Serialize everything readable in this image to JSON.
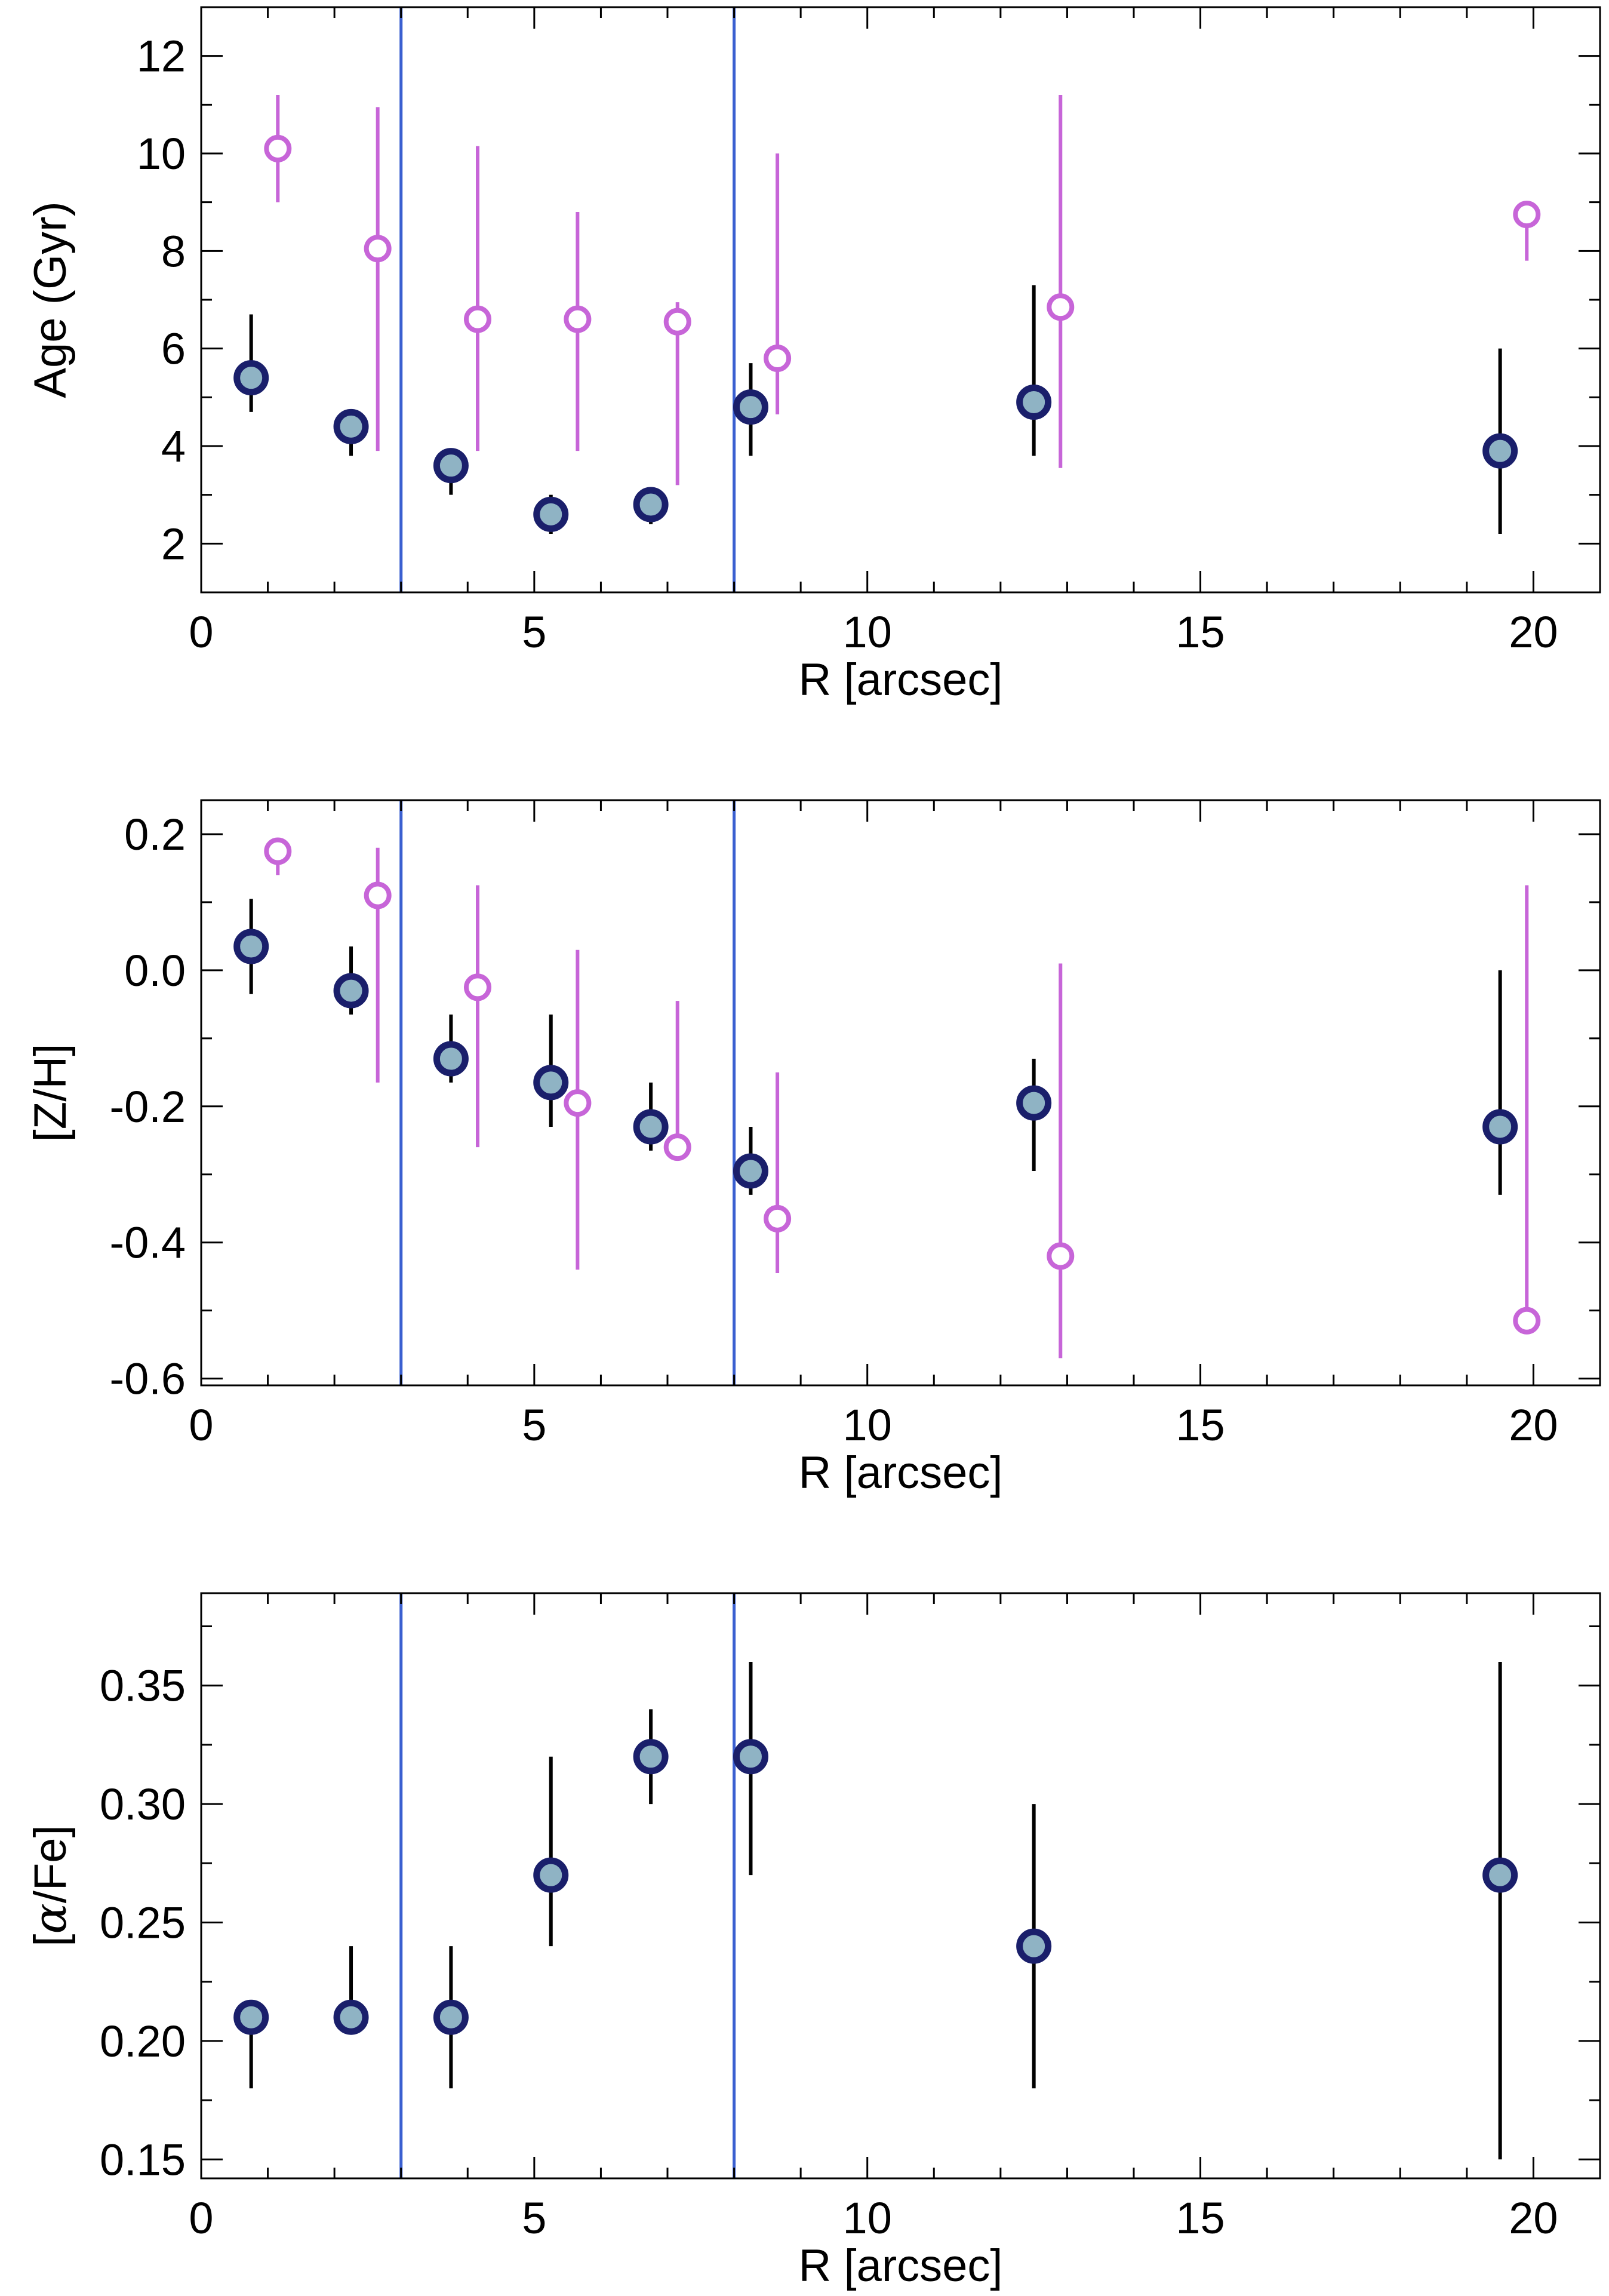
{
  "colors": {
    "filled_marker_edge": "#1a1f6b",
    "filled_marker_fill": "#8fb3c4",
    "filled_errorbar": "#000000",
    "open_marker": "#c765d8",
    "vline": "#3a5fd0",
    "frame": "#000000"
  },
  "chart_data": [
    {
      "type": "scatter",
      "xlabel": "R [arcsec]",
      "ylabel": "Age (Gyr)",
      "xlim": [
        0,
        21
      ],
      "ylim": [
        1,
        13
      ],
      "xticks": [
        0,
        5,
        10,
        15,
        20
      ],
      "xtick_labels": [
        "0",
        "5",
        "10",
        "15",
        "20"
      ],
      "yticks": [
        2,
        4,
        6,
        8,
        10,
        12
      ],
      "ytick_labels": [
        "2",
        "4",
        "6",
        "8",
        "10",
        "12"
      ],
      "vlines": [
        3,
        8
      ],
      "grid": false,
      "series": [
        {
          "marker": "filled-circle",
          "x": [
            0.75,
            2.25,
            3.75,
            5.25,
            6.75,
            8.25,
            12.5,
            19.5
          ],
          "y": [
            5.4,
            4.4,
            3.6,
            2.6,
            2.8,
            4.8,
            4.9,
            3.9
          ],
          "yerr_low": [
            4.7,
            3.8,
            3.0,
            2.2,
            2.4,
            3.8,
            3.8,
            2.2
          ],
          "yerr_high": [
            6.7,
            4.7,
            3.9,
            3.0,
            3.1,
            5.7,
            7.3,
            6.0
          ]
        },
        {
          "marker": "open-circle",
          "x": [
            1.15,
            2.65,
            4.15,
            5.65,
            7.15,
            8.65,
            12.9,
            19.9
          ],
          "y": [
            10.1,
            8.05,
            6.6,
            6.6,
            6.55,
            5.8,
            6.85,
            8.75
          ],
          "yerr_low": [
            9.0,
            3.9,
            3.9,
            3.9,
            3.2,
            4.65,
            3.55,
            7.8
          ],
          "yerr_high": [
            11.2,
            10.95,
            10.15,
            8.8,
            6.95,
            10.0,
            11.2,
            8.8
          ]
        }
      ]
    },
    {
      "type": "scatter",
      "xlabel": "R [arcsec]",
      "ylabel": "[Z/H]",
      "xlim": [
        0,
        21
      ],
      "ylim": [
        -0.61,
        0.25
      ],
      "xticks": [
        0,
        5,
        10,
        15,
        20
      ],
      "xtick_labels": [
        "0",
        "5",
        "10",
        "15",
        "20"
      ],
      "yticks": [
        -0.6,
        -0.4,
        -0.2,
        0.0,
        0.2
      ],
      "ytick_labels": [
        "-0.6",
        "-0.4",
        "-0.2",
        "0.0",
        "0.2"
      ],
      "vlines": [
        3,
        8
      ],
      "grid": false,
      "series": [
        {
          "marker": "filled-circle",
          "x": [
            0.75,
            2.25,
            3.75,
            5.25,
            6.75,
            8.25,
            12.5,
            19.5
          ],
          "y": [
            0.035,
            -0.03,
            -0.13,
            -0.165,
            -0.23,
            -0.295,
            -0.195,
            -0.23
          ],
          "yerr_low": [
            -0.035,
            -0.065,
            -0.165,
            -0.23,
            -0.265,
            -0.33,
            -0.295,
            -0.33
          ],
          "yerr_high": [
            0.105,
            0.035,
            -0.065,
            -0.065,
            -0.165,
            -0.23,
            -0.13,
            0.0
          ]
        },
        {
          "marker": "open-circle",
          "x": [
            1.15,
            2.65,
            4.15,
            5.65,
            7.15,
            8.65,
            12.9,
            19.9
          ],
          "y": [
            0.175,
            0.11,
            -0.025,
            -0.195,
            -0.26,
            -0.365,
            -0.42,
            -0.515
          ],
          "yerr_low": [
            0.14,
            -0.165,
            -0.26,
            -0.44,
            -0.26,
            -0.445,
            -0.57,
            -0.515
          ],
          "yerr_high": [
            0.175,
            0.18,
            0.125,
            0.03,
            -0.045,
            -0.15,
            0.01,
            0.125
          ]
        }
      ]
    },
    {
      "type": "scatter",
      "xlabel": "R [arcsec]",
      "ylabel": "[α/Fe]",
      "ylabel_parts": {
        "open": "[",
        "symbol": "α",
        "close": "/Fe]"
      },
      "xlim": [
        0,
        21
      ],
      "ylim": [
        0.142,
        0.389
      ],
      "xticks": [
        0,
        5,
        10,
        15,
        20
      ],
      "xtick_labels": [
        "0",
        "5",
        "10",
        "15",
        "20"
      ],
      "yticks": [
        0.15,
        0.2,
        0.25,
        0.3,
        0.35
      ],
      "ytick_labels": [
        "0.15",
        "0.20",
        "0.25",
        "0.30",
        "0.35"
      ],
      "vlines": [
        3,
        8
      ],
      "grid": false,
      "series": [
        {
          "marker": "filled-circle",
          "x": [
            0.75,
            2.25,
            3.75,
            5.25,
            6.75,
            8.25,
            12.5,
            19.5
          ],
          "y": [
            0.21,
            0.21,
            0.21,
            0.27,
            0.32,
            0.32,
            0.24,
            0.27
          ],
          "yerr_low": [
            0.18,
            0.21,
            0.18,
            0.24,
            0.3,
            0.27,
            0.18,
            0.15
          ],
          "yerr_high": [
            0.21,
            0.24,
            0.24,
            0.32,
            0.34,
            0.36,
            0.3,
            0.36
          ]
        }
      ]
    }
  ]
}
